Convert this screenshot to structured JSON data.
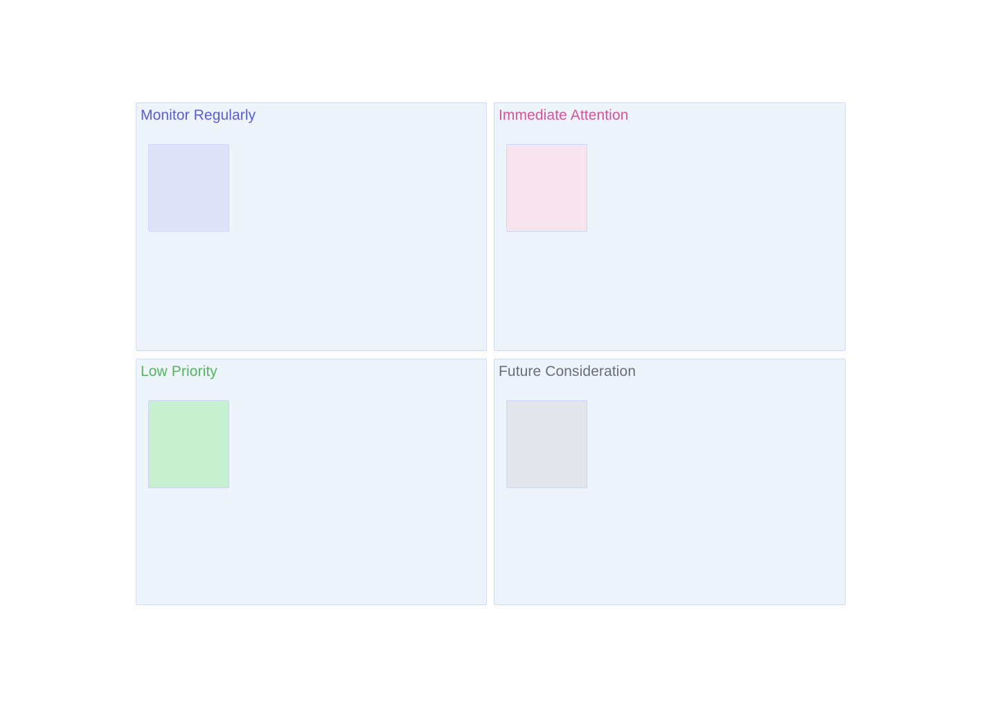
{
  "page": {
    "background_color": "#ffffff",
    "panel_background_color": "#eef4fc",
    "panel_border_color": "#d3daf0",
    "card_border_color": "#ccd5f2"
  },
  "matrix": {
    "quadrants": [
      {
        "id": "monitor-regularly",
        "title": "Monitor Regularly",
        "title_color": "#5a5bd7",
        "card_color": "#dfe3fa",
        "card_border_color": "#d2d8f4"
      },
      {
        "id": "immediate-attention",
        "title": "Immediate Attention",
        "title_color": "#d6529b",
        "card_color": "#f8e4ee",
        "card_border_color": "#cdd7f6"
      },
      {
        "id": "low-priority",
        "title": "Low Priority",
        "title_color": "#55b55e",
        "card_color": "#c7f0d0",
        "card_border_color": "#cdd5f1"
      },
      {
        "id": "future-consideration",
        "title": "Future Consideration",
        "title_color": "#636e7e",
        "card_color": "#e2e5eb",
        "card_border_color": "#cdd7f7"
      }
    ]
  }
}
